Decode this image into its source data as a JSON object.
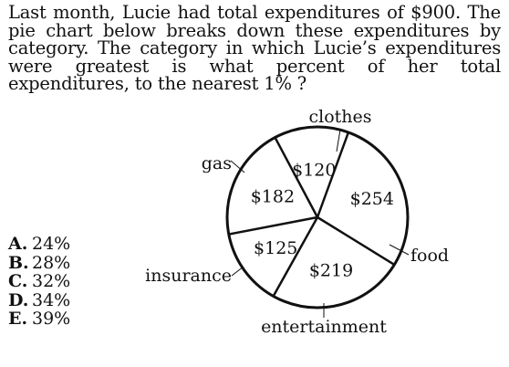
{
  "question": {
    "text": "Last month, Lucie had total expenditures of $900. The pie chart below breaks down these expenditures by category. The category in which Lucie’s expenditures were greatest is what percent of her total expenditures, to the nearest 1% ?"
  },
  "choices": [
    {
      "letter": "A.",
      "text": "24%"
    },
    {
      "letter": "B.",
      "text": "28%"
    },
    {
      "letter": "C.",
      "text": "32%"
    },
    {
      "letter": "D.",
      "text": "34%"
    },
    {
      "letter": "E.",
      "text": "39%"
    }
  ],
  "chart_data": {
    "type": "pie",
    "slices": [
      {
        "label": "clothes",
        "value": 254,
        "value_label": "$254"
      },
      {
        "label": "food",
        "value": 219,
        "value_label": "$219"
      },
      {
        "label": "entertainment",
        "value": 125,
        "value_label": "$125"
      },
      {
        "label": "insurance",
        "value": 182,
        "value_label": "$182"
      },
      {
        "label": "gas",
        "value": 120,
        "value_label": "$120"
      }
    ],
    "colors": {
      "stroke": "#111111",
      "fill": "#ffffff"
    }
  }
}
